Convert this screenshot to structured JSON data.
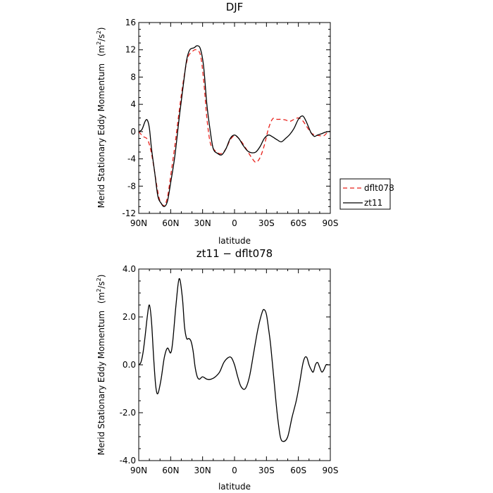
{
  "chart_data": [
    {
      "type": "line",
      "title": "DJF",
      "xlabel": "latitude",
      "ylabel": "Merid Stationary Eddy Momentum",
      "yunit_base": "(m",
      "yunit_exp1": "2",
      "yunit_mid": "/s",
      "yunit_exp2": "2",
      "yunit_end": ")",
      "xlim": [
        90,
        -90
      ],
      "ylim": [
        -12,
        16
      ],
      "x_ticks": [
        90,
        60,
        30,
        0,
        -30,
        -60,
        -90
      ],
      "x_tick_labels": [
        "90N",
        "60N",
        "30N",
        "0",
        "30S",
        "60S",
        "90S"
      ],
      "y_ticks": [
        -12,
        -8,
        -4,
        0,
        4,
        8,
        12,
        16
      ],
      "y_tick_labels": [
        "-12",
        "-8",
        "-4",
        "0",
        "4",
        "8",
        "12",
        "16"
      ],
      "legend": "outside-right",
      "grid": false,
      "series": [
        {
          "name": "dflt078",
          "color": "#e8201a",
          "dash": "6,4",
          "x": [
            90,
            86,
            82,
            79,
            76,
            73,
            70,
            66,
            63,
            60,
            56,
            52,
            48,
            44,
            40,
            36,
            32,
            29,
            26,
            23,
            20,
            16,
            12,
            8,
            4,
            0,
            -4,
            -8,
            -12,
            -16,
            -20,
            -24,
            -28,
            -32,
            -36,
            -40,
            -44,
            -48,
            -52,
            -56,
            -60,
            -64,
            -68,
            -72,
            -76,
            -80,
            -84,
            -88,
            -90
          ],
          "y": [
            0,
            -0.7,
            -1.1,
            -2.5,
            -5,
            -8,
            -10.2,
            -10.8,
            -9.6,
            -6.5,
            -2,
            3,
            7.5,
            10.8,
            11.7,
            12,
            11.2,
            7.5,
            2,
            -1.5,
            -2.5,
            -3.1,
            -3.2,
            -2.5,
            -1.2,
            -0.6,
            -1.0,
            -1.8,
            -2.8,
            -3.8,
            -4.5,
            -3.8,
            -2.0,
            0.5,
            1.9,
            1.8,
            1.8,
            1.7,
            1.5,
            1.8,
            2.0,
            1.6,
            0.7,
            -0.2,
            -0.5,
            -0.6,
            -0.6,
            0.0,
            0.0
          ]
        },
        {
          "name": "zt11",
          "color": "#000000",
          "dash": "",
          "x": [
            90,
            87,
            84,
            82,
            80,
            78,
            75,
            72,
            69,
            66,
            63,
            60,
            56,
            52,
            48,
            45,
            42,
            38,
            35,
            32,
            29,
            26,
            23,
            20,
            16,
            12,
            8,
            4,
            0,
            -4,
            -8,
            -12,
            -16,
            -20,
            -24,
            -28,
            -32,
            -36,
            -40,
            -44,
            -48,
            -52,
            -56,
            -60,
            -64,
            -67,
            -70,
            -72,
            -75,
            -78,
            -82,
            -85,
            -88,
            -90
          ],
          "y": [
            0,
            0.3,
            1.5,
            1.7,
            0.5,
            -2.5,
            -6,
            -9.5,
            -10.5,
            -11.0,
            -10.2,
            -7.5,
            -3.5,
            2,
            7,
            10.5,
            12.0,
            12.3,
            12.6,
            12.1,
            9.5,
            4,
            0.3,
            -2.5,
            -3.2,
            -3.4,
            -2.5,
            -1.0,
            -0.5,
            -1.0,
            -2.0,
            -2.8,
            -3.1,
            -3.0,
            -2.2,
            -1.0,
            -0.5,
            -0.8,
            -1.2,
            -1.5,
            -1.0,
            -0.4,
            0.5,
            1.8,
            2.3,
            1.6,
            0.5,
            -0.2,
            -0.7,
            -0.5,
            -0.3,
            -0.1,
            0.0,
            0.0
          ]
        }
      ]
    },
    {
      "type": "line",
      "title": "zt11 − dflt078",
      "xlabel": "latitude",
      "ylabel": "Merid Stationary Eddy Momentum",
      "yunit_base": "(m",
      "yunit_exp1": "2",
      "yunit_mid": "/s",
      "yunit_exp2": "2",
      "yunit_end": ")",
      "xlim": [
        90,
        -90
      ],
      "ylim": [
        -4,
        4
      ],
      "x_ticks": [
        90,
        60,
        30,
        0,
        -30,
        -60,
        -90
      ],
      "x_tick_labels": [
        "90N",
        "60N",
        "30N",
        "0",
        "30S",
        "60S",
        "90S"
      ],
      "y_ticks": [
        -4,
        -2,
        0,
        2,
        4
      ],
      "y_tick_labels": [
        "-4.0",
        "-2.0",
        "0.0",
        "2.0",
        "4.0"
      ],
      "grid": false,
      "series": [
        {
          "color": "#000000",
          "dash": "",
          "x": [
            90,
            88,
            86,
            84,
            82,
            80,
            78,
            76,
            74,
            72,
            69,
            66,
            63,
            60,
            58,
            55,
            52,
            49,
            47,
            45,
            43,
            41,
            39,
            37,
            35,
            33,
            30,
            26,
            22,
            18,
            14,
            10,
            6,
            3,
            0,
            -3,
            -6,
            -10,
            -14,
            -18,
            -22,
            -26,
            -28,
            -30,
            -32,
            -34,
            -37,
            -40,
            -43,
            -46,
            -50,
            -54,
            -58,
            -61,
            -64,
            -66,
            -68,
            -70,
            -72,
            -74,
            -76,
            -78,
            -80,
            -82,
            -84,
            -86,
            -88,
            -90
          ],
          "y": [
            0,
            0.1,
            0.5,
            1.2,
            2.0,
            2.5,
            1.8,
            0.3,
            -0.9,
            -1.2,
            -0.6,
            0.3,
            0.7,
            0.5,
            1.0,
            2.5,
            3.6,
            2.8,
            1.6,
            1.1,
            1.1,
            1.0,
            0.6,
            -0.1,
            -0.5,
            -0.6,
            -0.5,
            -0.6,
            -0.6,
            -0.5,
            -0.3,
            0.1,
            0.3,
            0.3,
            0.0,
            -0.5,
            -0.9,
            -1.0,
            -0.5,
            0.5,
            1.5,
            2.2,
            2.3,
            2.1,
            1.5,
            0.8,
            -0.6,
            -2.0,
            -3.0,
            -3.2,
            -3.0,
            -2.2,
            -1.5,
            -0.8,
            0.0,
            0.3,
            0.3,
            0.0,
            -0.2,
            -0.3,
            0.0,
            0.1,
            -0.1,
            -0.3,
            -0.2,
            0.0,
            0.0,
            0.0
          ]
        }
      ]
    }
  ]
}
